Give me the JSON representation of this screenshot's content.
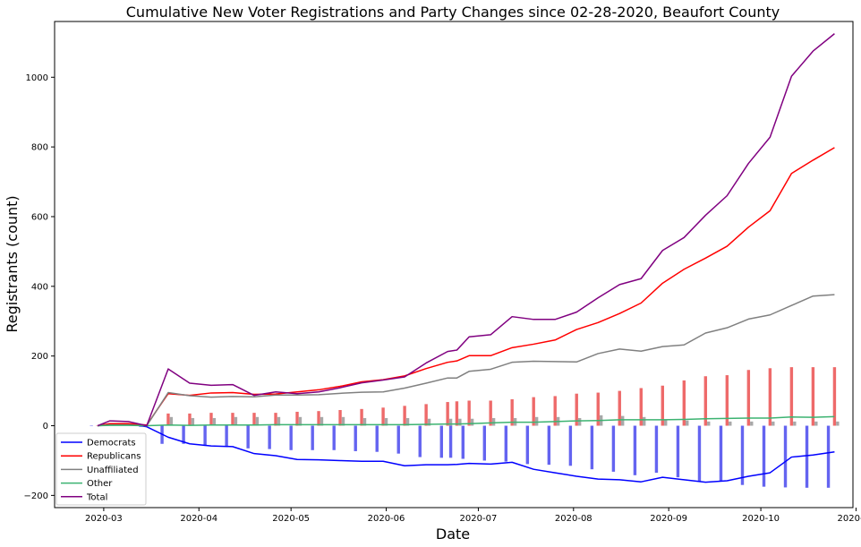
{
  "chart_data": {
    "type": "line",
    "title": "Cumulative New Voter Registrations and Party Changes since 02-28-2020, Beaufort County",
    "xlabel": "Date",
    "ylabel": "Registrants (count)",
    "x_range": [
      "2020-02-14",
      "2020-10-31"
    ],
    "ylim": [
      -235,
      1160
    ],
    "grid": false,
    "legend_position": "bottom-left",
    "x_ticks": [
      {
        "label": "2020-03",
        "date": "2020-03-01"
      },
      {
        "label": "2020-04",
        "date": "2020-04-01"
      },
      {
        "label": "2020-05",
        "date": "2020-05-01"
      },
      {
        "label": "2020-06",
        "date": "2020-06-01"
      },
      {
        "label": "2020-07",
        "date": "2020-07-01"
      },
      {
        "label": "2020-08",
        "date": "2020-08-01"
      },
      {
        "label": "2020-09",
        "date": "2020-09-01"
      },
      {
        "label": "2020-10",
        "date": "2020-10-01"
      },
      {
        "label": "2020-11",
        "date": "2020-11-01"
      }
    ],
    "y_ticks": [
      {
        "label": "−200",
        "value": -200
      },
      {
        "label": "0",
        "value": 0
      },
      {
        "label": "200",
        "value": 200
      },
      {
        "label": "400",
        "value": 400
      },
      {
        "label": "600",
        "value": 600
      },
      {
        "label": "800",
        "value": 800
      },
      {
        "label": "1000",
        "value": 1000
      }
    ],
    "x": [
      "2020-02-28",
      "2020-03-03",
      "2020-03-09",
      "2020-03-15",
      "2020-03-22",
      "2020-03-29",
      "2020-04-05",
      "2020-04-12",
      "2020-04-19",
      "2020-04-26",
      "2020-05-03",
      "2020-05-10",
      "2020-05-17",
      "2020-05-24",
      "2020-05-31",
      "2020-06-07",
      "2020-06-14",
      "2020-06-21",
      "2020-06-24",
      "2020-06-28",
      "2020-07-05",
      "2020-07-12",
      "2020-07-19",
      "2020-07-26",
      "2020-08-02",
      "2020-08-09",
      "2020-08-16",
      "2020-08-23",
      "2020-08-30",
      "2020-09-06",
      "2020-09-13",
      "2020-09-20",
      "2020-09-27",
      "2020-10-04",
      "2020-10-11",
      "2020-10-18",
      "2020-10-25"
    ],
    "series": [
      {
        "name": "Democrats",
        "color": "#0000ff",
        "values": [
          0,
          5,
          5,
          -3,
          -33,
          -52,
          -58,
          -60,
          -80,
          -86,
          -97,
          -98,
          -100,
          -102,
          -102,
          -115,
          -112,
          -112,
          -111,
          -108,
          -110,
          -105,
          -125,
          -135,
          -145,
          -153,
          -155,
          -161,
          -148,
          -155,
          -162,
          -158,
          -145,
          -135,
          -90,
          -84,
          -75
        ]
      },
      {
        "name": "Republicans",
        "color": "#ff0000",
        "values": [
          0,
          6,
          6,
          2,
          92,
          87,
          94,
          95,
          90,
          91,
          97,
          103,
          113,
          126,
          132,
          143,
          164,
          182,
          186,
          201,
          201,
          224,
          234,
          246,
          276,
          296,
          322,
          352,
          409,
          449,
          481,
          515,
          570,
          617,
          724,
          762,
          798
        ]
      },
      {
        "name": "Unaffiliated",
        "color": "#808080",
        "values": [
          0,
          2,
          2,
          0,
          95,
          86,
          82,
          84,
          83,
          88,
          88,
          89,
          93,
          96,
          97,
          108,
          122,
          137,
          137,
          156,
          162,
          182,
          185,
          184,
          183,
          207,
          220,
          214,
          227,
          232,
          266,
          281,
          306,
          318,
          345,
          372,
          376
        ]
      },
      {
        "name": "Other",
        "color": "#3cb371",
        "values": [
          0,
          1,
          1,
          0,
          2,
          1,
          2,
          2,
          2,
          3,
          3,
          3,
          3,
          3,
          3,
          3,
          4,
          5,
          5,
          6,
          8,
          10,
          10,
          12,
          14,
          15,
          17,
          17,
          17,
          18,
          20,
          21,
          22,
          22,
          25,
          24,
          26
        ]
      },
      {
        "name": "Total",
        "color": "#800080",
        "values": [
          0,
          14,
          12,
          0,
          163,
          122,
          116,
          118,
          87,
          97,
          92,
          97,
          109,
          123,
          131,
          140,
          180,
          213,
          217,
          255,
          261,
          313,
          305,
          305,
          326,
          367,
          405,
          422,
          503,
          540,
          604,
          660,
          753,
          828,
          1003,
          1075,
          1125
        ]
      }
    ],
    "bars": [
      {
        "name": "Democrats",
        "color": "#6464f0",
        "offset_days": -2,
        "values": [
          0,
          5,
          5,
          -3,
          -52,
          -52,
          -58,
          -60,
          -65,
          -67,
          -70,
          -70,
          -70,
          -73,
          -75,
          -80,
          -90,
          -92,
          -92,
          -95,
          -100,
          -103,
          -110,
          -112,
          -115,
          -125,
          -132,
          -142,
          -135,
          -148,
          -160,
          -158,
          -170,
          -175,
          -177,
          -178,
          -178
        ]
      },
      {
        "name": "Republicans",
        "color": "#ee6a6a",
        "offset_days": 0,
        "values": [
          0,
          2,
          2,
          0,
          35,
          35,
          37,
          37,
          37,
          37,
          40,
          42,
          45,
          48,
          52,
          57,
          62,
          68,
          70,
          72,
          72,
          76,
          82,
          85,
          92,
          95,
          100,
          108,
          115,
          130,
          142,
          145,
          160,
          165,
          168,
          168,
          168
        ]
      },
      {
        "name": "Unaffiliated",
        "color": "#a8a8a8",
        "offset_days": 1,
        "values": [
          0,
          1,
          1,
          0,
          25,
          22,
          22,
          25,
          25,
          25,
          25,
          25,
          25,
          22,
          22,
          22,
          20,
          20,
          20,
          20,
          22,
          22,
          25,
          25,
          22,
          30,
          28,
          25,
          18,
          15,
          12,
          12,
          12,
          12,
          12,
          12,
          12
        ]
      }
    ]
  }
}
